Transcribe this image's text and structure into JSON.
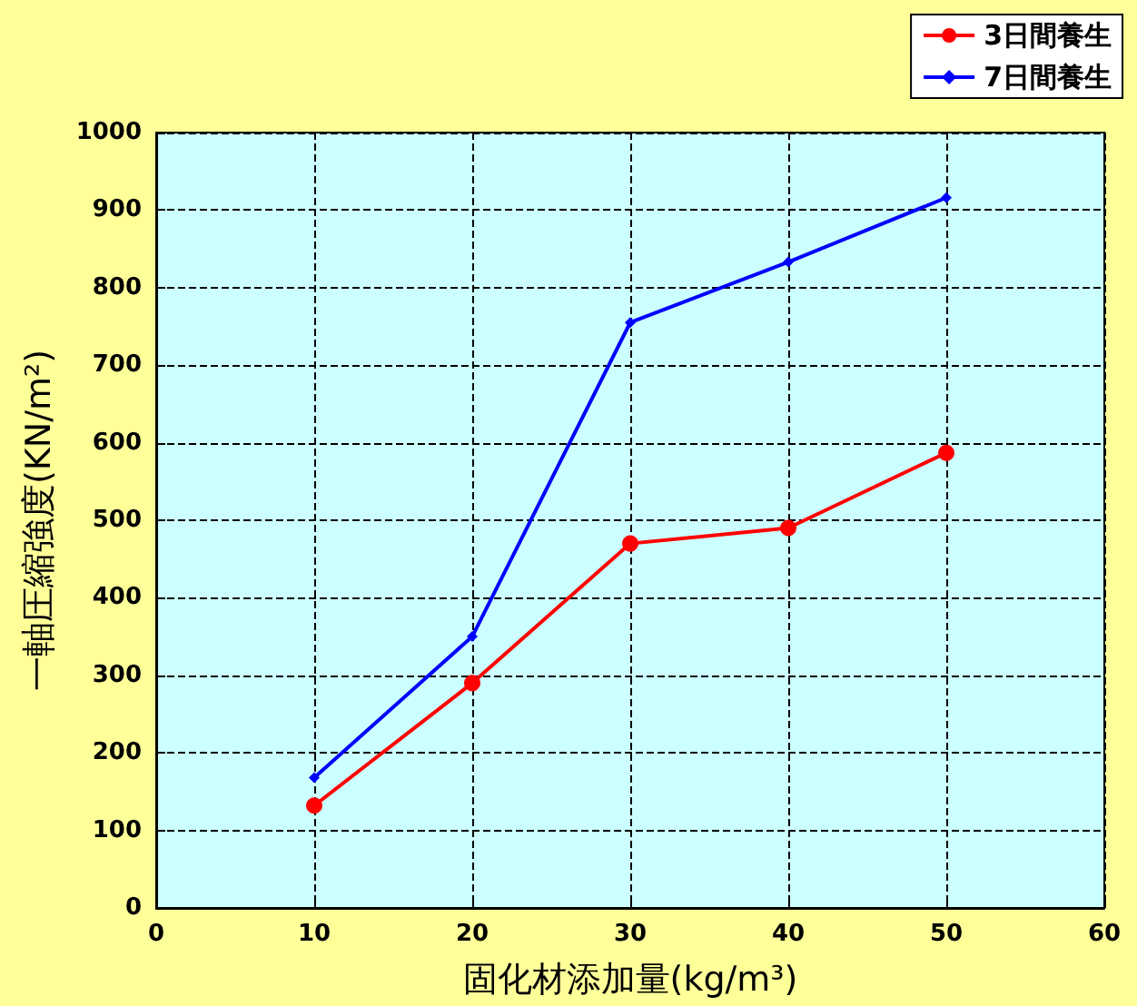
{
  "chart_data": {
    "type": "line",
    "x": [
      10,
      20,
      30,
      40,
      50
    ],
    "series": [
      {
        "name": "3日間養生",
        "color": "#ff0000",
        "marker": "circle",
        "values": [
          132,
          290,
          470,
          490,
          587
        ]
      },
      {
        "name": "7日間養生",
        "color": "#0000ff",
        "marker": "diamond",
        "values": [
          168,
          350,
          755,
          833,
          916
        ]
      }
    ],
    "xlabel": "固化材添加量(kg/m³)",
    "ylabel": "一軸圧縮強度(KN/m²)",
    "xlim": [
      0,
      60
    ],
    "xticks": [
      0,
      10,
      20,
      30,
      40,
      50,
      60
    ],
    "ylim": [
      0,
      1000
    ],
    "yticks": [
      0,
      100,
      200,
      300,
      400,
      500,
      600,
      700,
      800,
      900,
      1000
    ],
    "grid": true,
    "legend": "top right"
  }
}
